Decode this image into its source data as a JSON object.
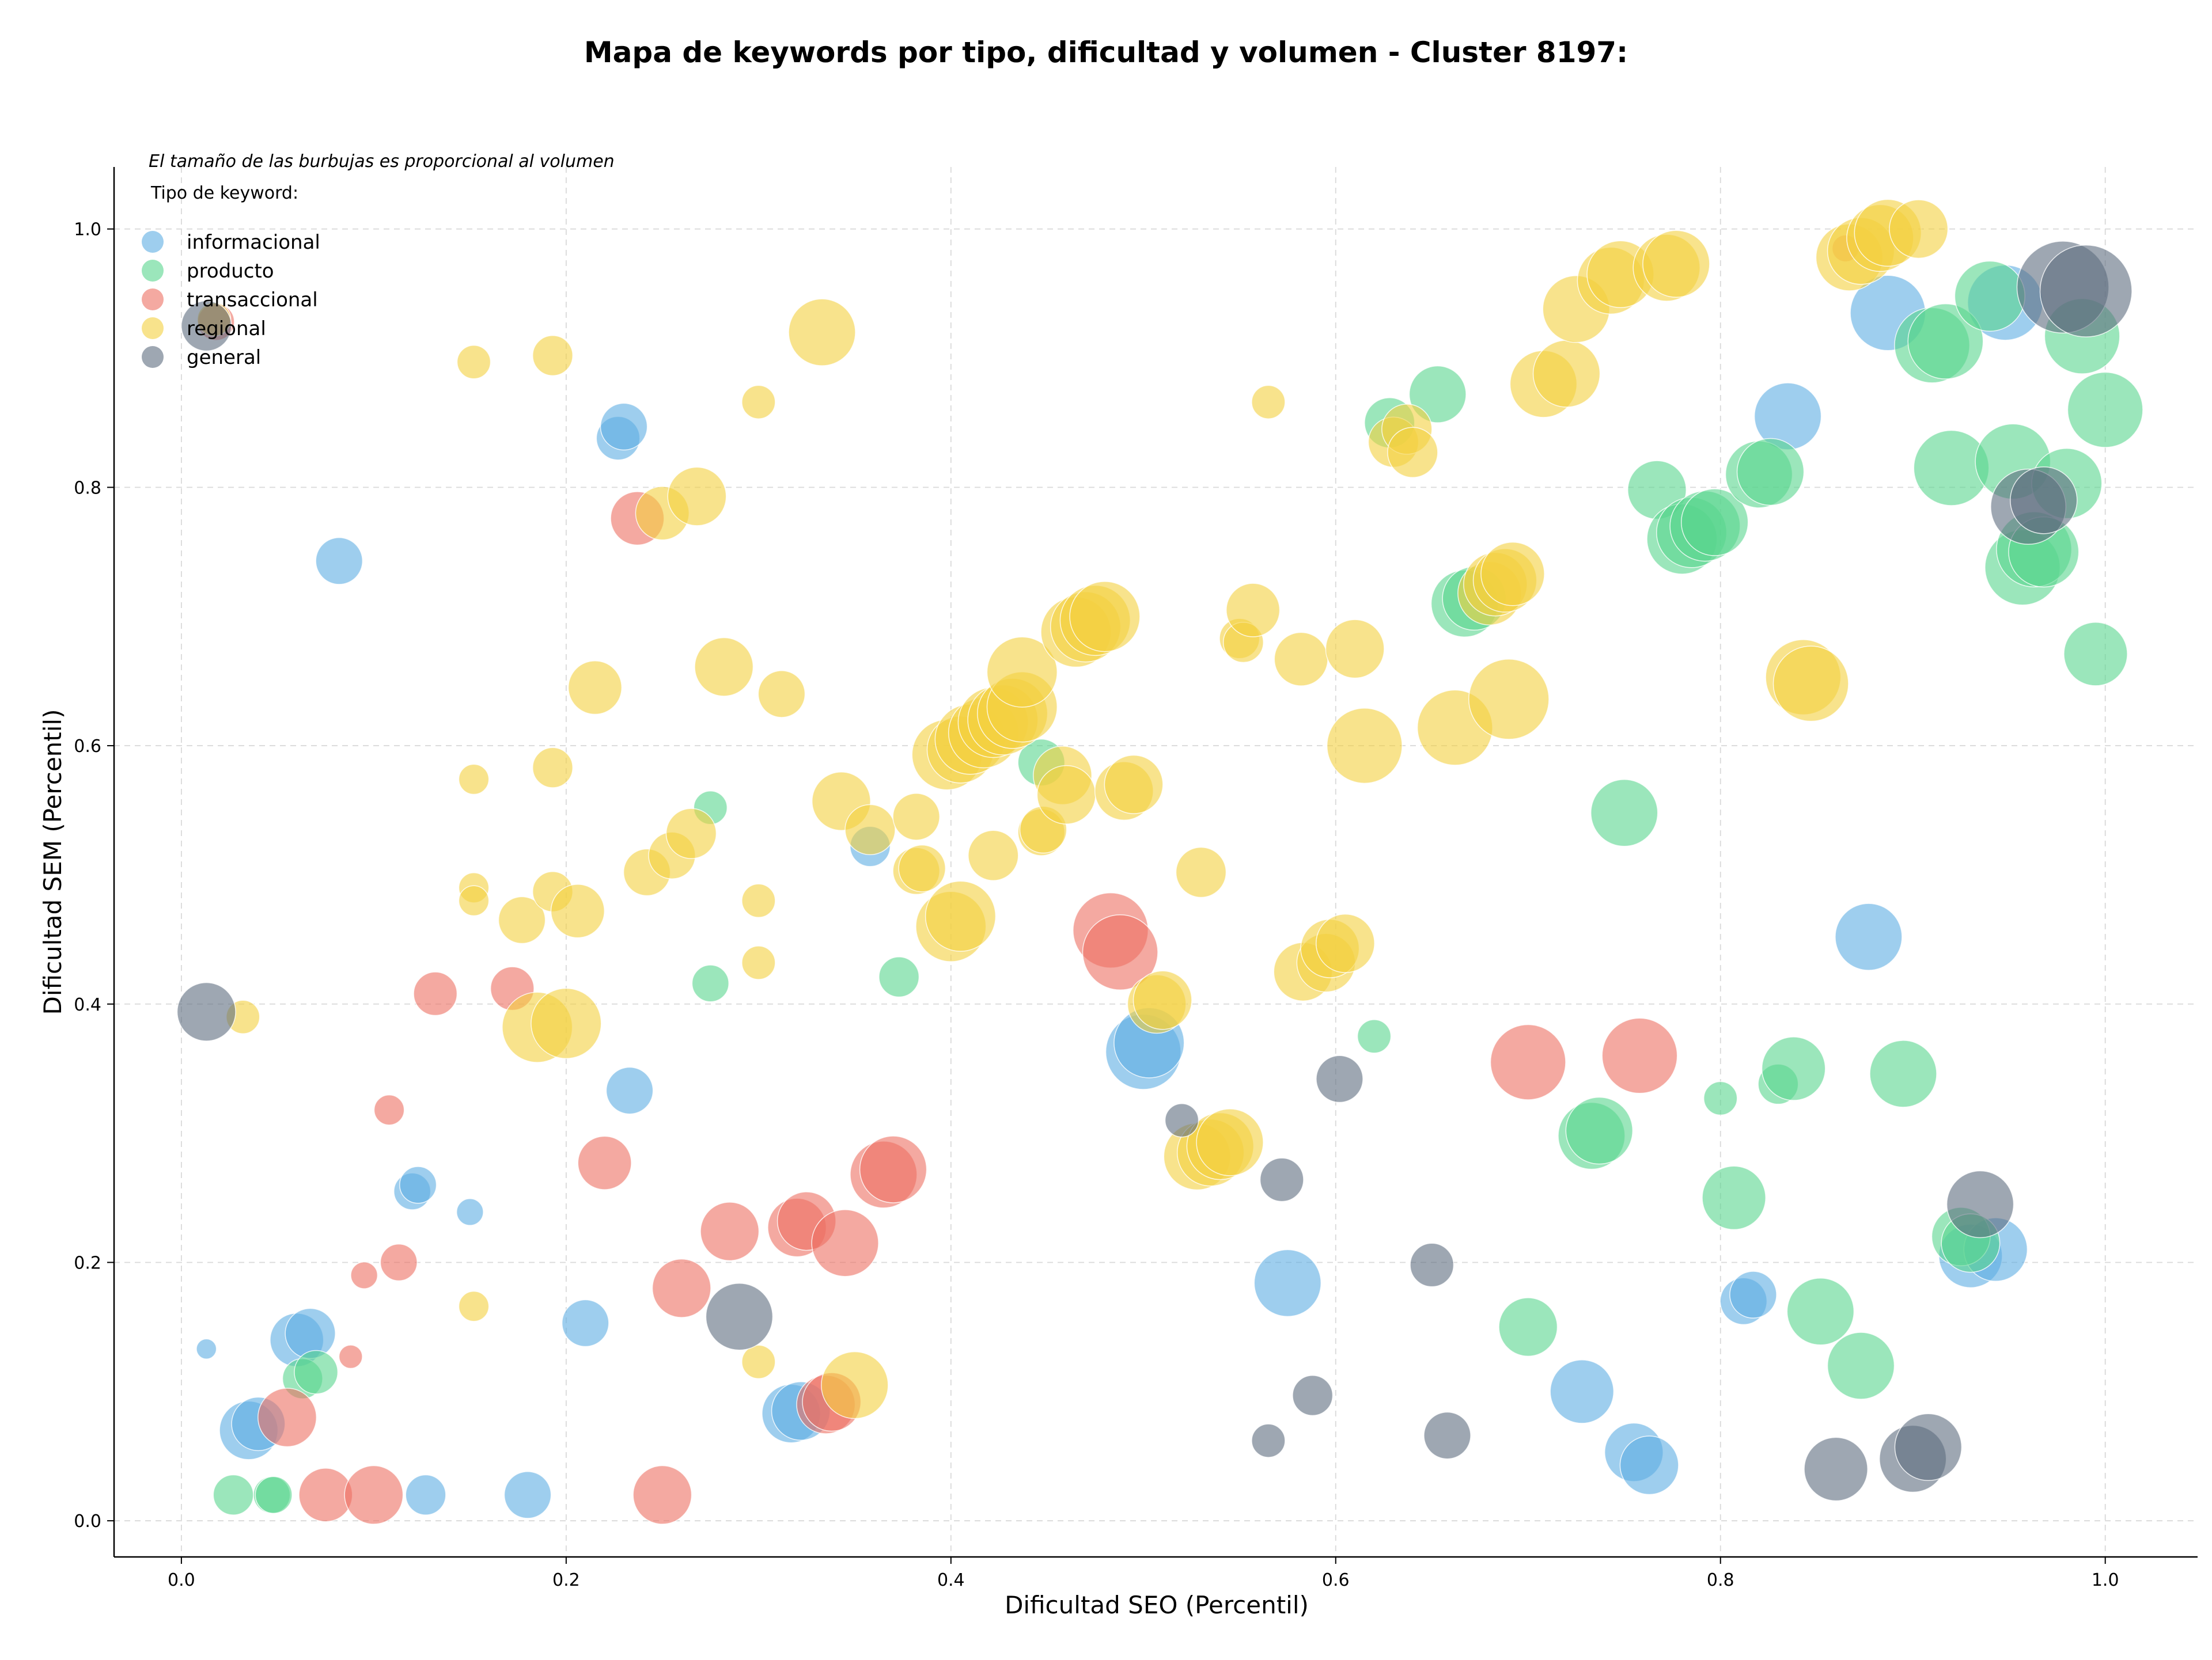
{
  "chart_data": {
    "type": "scatter",
    "title": "Mapa de keywords por tipo, dificultad y volumen - Cluster 8197:",
    "xlabel": "Dificultad SEO (Percentil)",
    "ylabel": "Dificultad SEM (Percentil)",
    "xlim": [
      -0.035,
      1.048
    ],
    "ylim": [
      -0.028,
      1.048
    ],
    "xticks": [
      "0.0",
      "0.2",
      "0.4",
      "0.6",
      "0.8",
      "1.0"
    ],
    "yticks": [
      "0.0",
      "0.2",
      "0.4",
      "0.6",
      "0.8",
      "1.0"
    ],
    "grid": true,
    "legend_placement": "top-left",
    "note": "El tamaño de las burbujas es proporcional al volumen",
    "legend_title": "Tipo de keyword:",
    "series": [
      {
        "name": "informacional",
        "color": "#5dade2",
        "points": [
          [
            0.013,
            0.133,
            12
          ],
          [
            0.082,
            0.743,
            28
          ],
          [
            0.227,
            0.838,
            26
          ],
          [
            0.23,
            0.847,
            28
          ],
          [
            0.233,
            0.333,
            28
          ],
          [
            0.12,
            0.255,
            22
          ],
          [
            0.123,
            0.26,
            22
          ],
          [
            0.15,
            0.239,
            16
          ],
          [
            0.21,
            0.153,
            28
          ],
          [
            0.06,
            0.14,
            32
          ],
          [
            0.067,
            0.145,
            30
          ],
          [
            0.035,
            0.07,
            35
          ],
          [
            0.04,
            0.075,
            32
          ],
          [
            0.127,
            0.02,
            24
          ],
          [
            0.18,
            0.02,
            28
          ],
          [
            0.317,
            0.083,
            35
          ],
          [
            0.322,
            0.085,
            35
          ],
          [
            0.358,
            0.522,
            24
          ],
          [
            0.5,
            0.363,
            45
          ],
          [
            0.503,
            0.37,
            42
          ],
          [
            0.575,
            0.184,
            40
          ],
          [
            0.728,
            0.1,
            38
          ],
          [
            0.755,
            0.053,
            35
          ],
          [
            0.763,
            0.043,
            35
          ],
          [
            0.812,
            0.17,
            28
          ],
          [
            0.817,
            0.175,
            28
          ],
          [
            0.877,
            0.452,
            40
          ],
          [
            0.887,
            0.935,
            45
          ],
          [
            0.948,
            0.943,
            45
          ],
          [
            0.835,
            0.855,
            40
          ],
          [
            0.93,
            0.205,
            38
          ],
          [
            0.943,
            0.21,
            38
          ]
        ]
      },
      {
        "name": "producto",
        "color": "#58d68d",
        "points": [
          [
            0.027,
            0.02,
            24
          ],
          [
            0.047,
            0.02,
            22
          ],
          [
            0.048,
            0.02,
            22
          ],
          [
            0.063,
            0.11,
            24
          ],
          [
            0.07,
            0.115,
            26
          ],
          [
            0.275,
            0.552,
            20
          ],
          [
            0.275,
            0.416,
            22
          ],
          [
            0.373,
            0.421,
            24
          ],
          [
            0.447,
            0.587,
            28
          ],
          [
            0.62,
            0.375,
            20
          ],
          [
            0.628,
            0.85,
            30
          ],
          [
            0.653,
            0.872,
            34
          ],
          [
            0.667,
            0.71,
            40
          ],
          [
            0.672,
            0.714,
            38
          ],
          [
            0.7,
            0.15,
            35
          ],
          [
            0.733,
            0.298,
            40
          ],
          [
            0.737,
            0.302,
            40
          ],
          [
            0.75,
            0.548,
            40
          ],
          [
            0.767,
            0.798,
            35
          ],
          [
            0.78,
            0.76,
            42
          ],
          [
            0.785,
            0.765,
            42
          ],
          [
            0.792,
            0.77,
            42
          ],
          [
            0.797,
            0.773,
            40
          ],
          [
            0.8,
            0.327,
            20
          ],
          [
            0.807,
            0.25,
            38
          ],
          [
            0.82,
            0.81,
            40
          ],
          [
            0.826,
            0.812,
            40
          ],
          [
            0.83,
            0.338,
            24
          ],
          [
            0.838,
            0.35,
            38
          ],
          [
            0.852,
            0.162,
            40
          ],
          [
            0.873,
            0.12,
            40
          ],
          [
            0.895,
            0.346,
            40
          ],
          [
            0.91,
            0.91,
            45
          ],
          [
            0.917,
            0.913,
            45
          ],
          [
            0.92,
            0.815,
            45
          ],
          [
            0.925,
            0.22,
            35
          ],
          [
            0.93,
            0.215,
            35
          ],
          [
            0.94,
            0.948,
            42
          ],
          [
            0.952,
            0.82,
            45
          ],
          [
            0.957,
            0.738,
            45
          ],
          [
            0.963,
            0.752,
            45
          ],
          [
            0.968,
            0.75,
            42
          ],
          [
            0.98,
            0.803,
            42
          ],
          [
            0.988,
            0.917,
            45
          ],
          [
            1.0,
            0.86,
            45
          ],
          [
            0.995,
            0.671,
            38
          ]
        ]
      },
      {
        "name": "transaccional",
        "color": "#ec7063",
        "points": [
          [
            0.018,
            0.928,
            22
          ],
          [
            0.055,
            0.08,
            35
          ],
          [
            0.075,
            0.02,
            32
          ],
          [
            0.1,
            0.02,
            35
          ],
          [
            0.088,
            0.127,
            14
          ],
          [
            0.095,
            0.19,
            16
          ],
          [
            0.108,
            0.318,
            18
          ],
          [
            0.113,
            0.2,
            22
          ],
          [
            0.132,
            0.408,
            26
          ],
          [
            0.172,
            0.412,
            26
          ],
          [
            0.22,
            0.277,
            32
          ],
          [
            0.237,
            0.776,
            32
          ],
          [
            0.25,
            0.02,
            35
          ],
          [
            0.26,
            0.18,
            35
          ],
          [
            0.285,
            0.224,
            35
          ],
          [
            0.32,
            0.227,
            35
          ],
          [
            0.325,
            0.232,
            35
          ],
          [
            0.335,
            0.09,
            35
          ],
          [
            0.338,
            0.092,
            35
          ],
          [
            0.345,
            0.215,
            40
          ],
          [
            0.365,
            0.268,
            40
          ],
          [
            0.37,
            0.272,
            40
          ],
          [
            0.483,
            0.457,
            45
          ],
          [
            0.488,
            0.44,
            45
          ],
          [
            0.7,
            0.355,
            45
          ],
          [
            0.758,
            0.36,
            45
          ],
          [
            0.865,
            0.985,
            16
          ]
        ]
      },
      {
        "name": "regional",
        "color": "#f4d03f",
        "points": [
          [
            0.017,
            0.93,
            20
          ],
          [
            0.032,
            0.39,
            20
          ],
          [
            0.152,
            0.897,
            20
          ],
          [
            0.152,
            0.574,
            18
          ],
          [
            0.152,
            0.49,
            18
          ],
          [
            0.152,
            0.48,
            18
          ],
          [
            0.152,
            0.166,
            18
          ],
          [
            0.177,
            0.465,
            28
          ],
          [
            0.185,
            0.382,
            42
          ],
          [
            0.2,
            0.385,
            42
          ],
          [
            0.193,
            0.902,
            24
          ],
          [
            0.193,
            0.583,
            24
          ],
          [
            0.193,
            0.487,
            24
          ],
          [
            0.206,
            0.472,
            32
          ],
          [
            0.215,
            0.645,
            32
          ],
          [
            0.242,
            0.502,
            28
          ],
          [
            0.25,
            0.78,
            32
          ],
          [
            0.255,
            0.515,
            28
          ],
          [
            0.265,
            0.532,
            30
          ],
          [
            0.268,
            0.793,
            35
          ],
          [
            0.282,
            0.661,
            35
          ],
          [
            0.3,
            0.866,
            20
          ],
          [
            0.3,
            0.48,
            20
          ],
          [
            0.3,
            0.432,
            20
          ],
          [
            0.3,
            0.123,
            20
          ],
          [
            0.312,
            0.64,
            28
          ],
          [
            0.333,
            0.92,
            40
          ],
          [
            0.343,
            0.557,
            35
          ],
          [
            0.35,
            0.105,
            40
          ],
          [
            0.358,
            0.535,
            30
          ],
          [
            0.382,
            0.545,
            28
          ],
          [
            0.382,
            0.503,
            28
          ],
          [
            0.385,
            0.505,
            28
          ],
          [
            0.4,
            0.46,
            42
          ],
          [
            0.405,
            0.468,
            42
          ],
          [
            0.398,
            0.593,
            42
          ],
          [
            0.405,
            0.597,
            40
          ],
          [
            0.41,
            0.605,
            42
          ],
          [
            0.417,
            0.61,
            42
          ],
          [
            0.422,
            0.618,
            42
          ],
          [
            0.427,
            0.62,
            42
          ],
          [
            0.432,
            0.625,
            42
          ],
          [
            0.437,
            0.63,
            42
          ],
          [
            0.437,
            0.657,
            42
          ],
          [
            0.422,
            0.515,
            30
          ],
          [
            0.447,
            0.533,
            28
          ],
          [
            0.448,
            0.535,
            28
          ],
          [
            0.458,
            0.577,
            35
          ],
          [
            0.46,
            0.562,
            35
          ],
          [
            0.465,
            0.688,
            42
          ],
          [
            0.47,
            0.692,
            42
          ],
          [
            0.475,
            0.697,
            42
          ],
          [
            0.48,
            0.7,
            42
          ],
          [
            0.49,
            0.565,
            35
          ],
          [
            0.495,
            0.57,
            35
          ],
          [
            0.507,
            0.4,
            35
          ],
          [
            0.51,
            0.403,
            35
          ],
          [
            0.528,
            0.282,
            40
          ],
          [
            0.535,
            0.285,
            40
          ],
          [
            0.54,
            0.29,
            40
          ],
          [
            0.545,
            0.293,
            40
          ],
          [
            0.53,
            0.502,
            30
          ],
          [
            0.55,
            0.683,
            24
          ],
          [
            0.552,
            0.68,
            24
          ],
          [
            0.557,
            0.705,
            32
          ],
          [
            0.565,
            0.866,
            20
          ],
          [
            0.582,
            0.667,
            32
          ],
          [
            0.583,
            0.425,
            35
          ],
          [
            0.595,
            0.432,
            35
          ],
          [
            0.597,
            0.443,
            35
          ],
          [
            0.605,
            0.447,
            35
          ],
          [
            0.61,
            0.675,
            35
          ],
          [
            0.615,
            0.6,
            45
          ],
          [
            0.63,
            0.835,
            30
          ],
          [
            0.637,
            0.845,
            30
          ],
          [
            0.64,
            0.827,
            30
          ],
          [
            0.662,
            0.614,
            45
          ],
          [
            0.68,
            0.718,
            38
          ],
          [
            0.683,
            0.725,
            38
          ],
          [
            0.688,
            0.728,
            38
          ],
          [
            0.692,
            0.733,
            38
          ],
          [
            0.69,
            0.636,
            48
          ],
          [
            0.708,
            0.88,
            40
          ],
          [
            0.72,
            0.888,
            40
          ],
          [
            0.725,
            0.938,
            40
          ],
          [
            0.743,
            0.96,
            40
          ],
          [
            0.748,
            0.965,
            40
          ],
          [
            0.772,
            0.97,
            40
          ],
          [
            0.777,
            0.973,
            40
          ],
          [
            0.843,
            0.653,
            45
          ],
          [
            0.847,
            0.648,
            45
          ],
          [
            0.867,
            0.978,
            40
          ],
          [
            0.873,
            0.983,
            40
          ],
          [
            0.883,
            0.993,
            40
          ],
          [
            0.887,
            0.997,
            40
          ],
          [
            0.903,
            1.0,
            35
          ]
        ]
      },
      {
        "name": "general",
        "color": "#5d6d7e",
        "points": [
          [
            0.013,
            0.925,
            30
          ],
          [
            0.013,
            0.394,
            35
          ],
          [
            0.29,
            0.158,
            40
          ],
          [
            0.52,
            0.31,
            20
          ],
          [
            0.565,
            0.062,
            20
          ],
          [
            0.572,
            0.264,
            26
          ],
          [
            0.588,
            0.097,
            24
          ],
          [
            0.602,
            0.342,
            28
          ],
          [
            0.65,
            0.198,
            26
          ],
          [
            0.658,
            0.066,
            28
          ],
          [
            0.86,
            0.04,
            38
          ],
          [
            0.9,
            0.048,
            40
          ],
          [
            0.908,
            0.057,
            40
          ],
          [
            0.935,
            0.245,
            40
          ],
          [
            0.96,
            0.785,
            45
          ],
          [
            0.968,
            0.79,
            40
          ],
          [
            0.978,
            0.955,
            55
          ],
          [
            0.99,
            0.952,
            55
          ]
        ]
      }
    ]
  }
}
